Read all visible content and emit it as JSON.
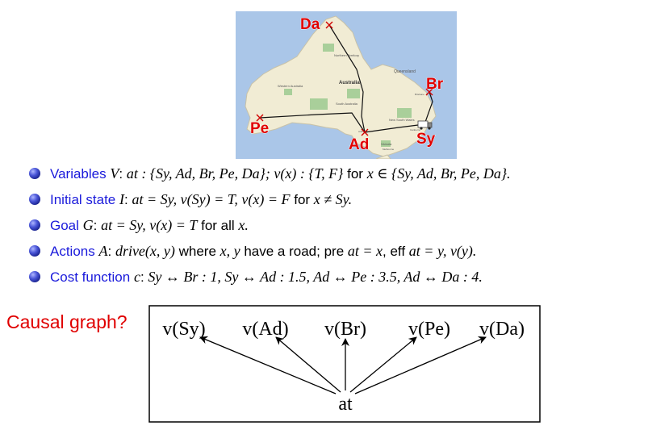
{
  "map": {
    "labels": {
      "da": "Da",
      "br": "Br",
      "pe": "Pe",
      "ad": "Ad",
      "sy": "Sy"
    },
    "region_labels": {
      "northern_territory": "Northern Territory",
      "australia": "Australia",
      "queensland": "Queensland",
      "western_australia": "Western Australia",
      "south_australia": "South Australia",
      "new_south_wales": "New South Wales",
      "victoria": "Victoria",
      "canberra": "Canberra",
      "melbourne": "Melbourne",
      "brisbane": "Brisbane",
      "adelaide": "Adelaide"
    }
  },
  "bullets": [
    {
      "label": "Variables",
      "sym": "V",
      "text_before": ": ",
      "math1": "at : {Sy, Ad, Br, Pe, Da}; v(x) : {T, F}",
      "text_mid": " for ",
      "math2": "x ∈ {Sy, Ad, Br, Pe, Da}."
    },
    {
      "label": "Initial state",
      "sym": "I",
      "text_before": ": ",
      "math1": "at = Sy, v(Sy) = T, v(x) = F",
      "text_mid": " for ",
      "math2": "x ≠ Sy."
    },
    {
      "label": "Goal",
      "sym": "G",
      "text_before": ": ",
      "math1": "at = Sy, v(x) = T",
      "text_mid": " for all ",
      "math2": "x."
    },
    {
      "label": "Actions",
      "sym": "A",
      "text_before": ": ",
      "math1": "drive(x, y)",
      "text_mid": " where ",
      "math2": "x, y",
      "text_after1": " have a road; pre ",
      "math3": "at = x",
      "text_after2": ", eff ",
      "math4": "at = y, v(y)."
    },
    {
      "label": "Cost function",
      "sym": "c",
      "text_before": ": ",
      "math1": "Sy ↔ Br : 1,  Sy ↔ Ad : 1.5,  Ad ↔ Pe : 3.5,  Ad ↔ Da : 4."
    }
  ],
  "causal_graph": {
    "question": "Causal graph?",
    "nodes": [
      "v(Sy)",
      "v(Ad)",
      "v(Br)",
      "v(Pe)",
      "v(Da)"
    ],
    "root": "at"
  }
}
